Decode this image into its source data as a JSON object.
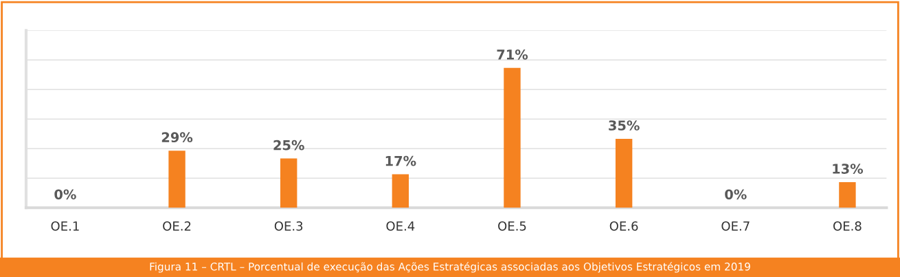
{
  "chart_data": {
    "type": "bar",
    "categories": [
      "OE.1",
      "OE.2",
      "OE.3",
      "OE.4",
      "OE.5",
      "OE.6",
      "OE.7",
      "OE.8"
    ],
    "values": [
      0,
      29,
      25,
      17,
      71,
      35,
      0,
      13
    ],
    "value_labels": [
      "0%",
      "29%",
      "25%",
      "17%",
      "71%",
      "35%",
      "0%",
      "13%"
    ],
    "color": "#f58220",
    "ylim": [
      0,
      90
    ],
    "yticks": [
      {
        "value": 0,
        "label": null
      },
      {
        "value": 15,
        "label": null
      },
      {
        "value": 30,
        "label": null
      },
      {
        "value": 45,
        "label": null
      },
      {
        "value": 60,
        "label": null
      },
      {
        "value": 75,
        "label": null
      },
      {
        "value": 90,
        "label": null
      }
    ],
    "tick_labels": "x",
    "grid": "y",
    "legend": false,
    "annotations": [
      "Figura 11 – CRTL – Porcentual de execução das Ações Estratégicas associadas aos Objetivos Estratégicos em 2019"
    ]
  }
}
